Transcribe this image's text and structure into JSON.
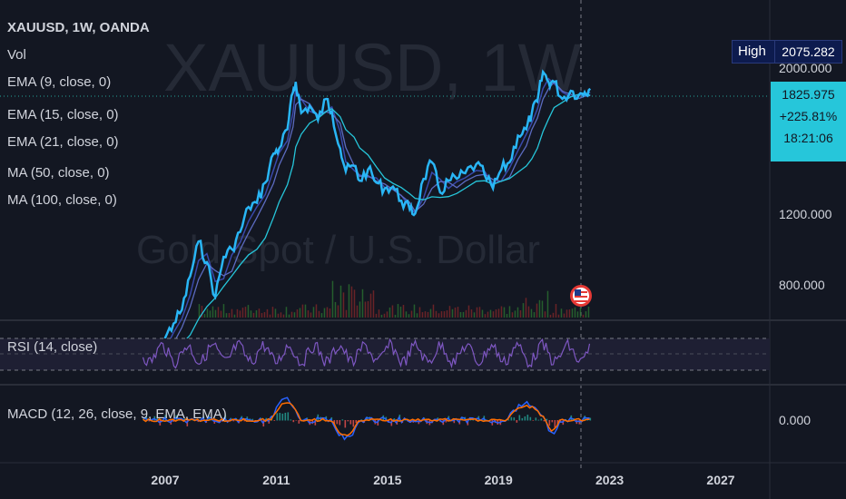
{
  "header": {
    "symbol_line": "XAUUSD, 1W, OANDA",
    "vol": "Vol",
    "ema9": "EMA (9, close, 0)",
    "ema15": "EMA (15, close, 0)",
    "ema21": "EMA (21, close, 0)",
    "ma50": "MA (50, close, 0)",
    "ma100": "MA (100, close, 0)"
  },
  "watermark": {
    "big": "XAUUSD, 1W",
    "sub": "Gold Spot / U.S. Dollar"
  },
  "price_scale": {
    "high_label": "High",
    "high_value": "2075.282",
    "last_price": "1825.975",
    "change": "+225.81%",
    "countdown": "18:21:06",
    "ticks": [
      "2000.000",
      "1200.000",
      "800.000"
    ]
  },
  "rsi": {
    "label": "RSI (14, close)"
  },
  "macd": {
    "label": "MACD (12, 26, close, 9, EMA, EMA)",
    "tick": "0.000"
  },
  "colors": {
    "bg": "#131722",
    "price_line": "#29b6f6",
    "ema_fast": "#3949ab",
    "ma": "#26c6da",
    "rsi": "#7e57c2",
    "macd": "#2962ff",
    "signal": "#ff6d00",
    "label_bg": "#26c6da",
    "high_bg": "#0d1b4e"
  },
  "chart_data": {
    "type": "line",
    "x_ticks": [
      "2007",
      "2011",
      "2015",
      "2019",
      "2023",
      "2027"
    ],
    "series": [
      {
        "name": "XAUUSD",
        "x": [
          2006.2,
          2006.5,
          2006.8,
          2007.0,
          2007.3,
          2007.6,
          2007.9,
          2008.2,
          2008.5,
          2008.8,
          2009.1,
          2009.4,
          2009.7,
          2010.0,
          2010.3,
          2010.6,
          2010.9,
          2011.1,
          2011.4,
          2011.6,
          2011.7,
          2011.9,
          2012.2,
          2012.5,
          2012.8,
          2013.0,
          2013.3,
          2013.5,
          2013.8,
          2014.0,
          2014.3,
          2014.6,
          2014.9,
          2015.2,
          2015.5,
          2015.8,
          2016.0,
          2016.3,
          2016.6,
          2016.9,
          2017.2,
          2017.5,
          2017.8,
          2018.2,
          2018.5,
          2018.8,
          2019.1,
          2019.4,
          2019.7,
          2020.0,
          2020.2,
          2020.4,
          2020.6,
          2020.8,
          2021.0,
          2021.3,
          2021.6,
          2021.9,
          2022.1,
          2022.3
        ],
        "values": [
          600,
          610,
          590,
          640,
          680,
          720,
          830,
          960,
          880,
          760,
          900,
          930,
          1000,
          1110,
          1130,
          1230,
          1390,
          1420,
          1540,
          1800,
          1880,
          1650,
          1700,
          1600,
          1750,
          1660,
          1420,
          1290,
          1320,
          1240,
          1300,
          1230,
          1200,
          1210,
          1140,
          1100,
          1080,
          1250,
          1340,
          1180,
          1240,
          1250,
          1280,
          1330,
          1270,
          1200,
          1300,
          1340,
          1500,
          1540,
          1650,
          1730,
          1960,
          1880,
          1880,
          1750,
          1810,
          1780,
          1800,
          1826
        ]
      }
    ],
    "price_ticks": [
      800,
      1200,
      2000
    ],
    "high": 2075.282,
    "last": 1825.975
  }
}
